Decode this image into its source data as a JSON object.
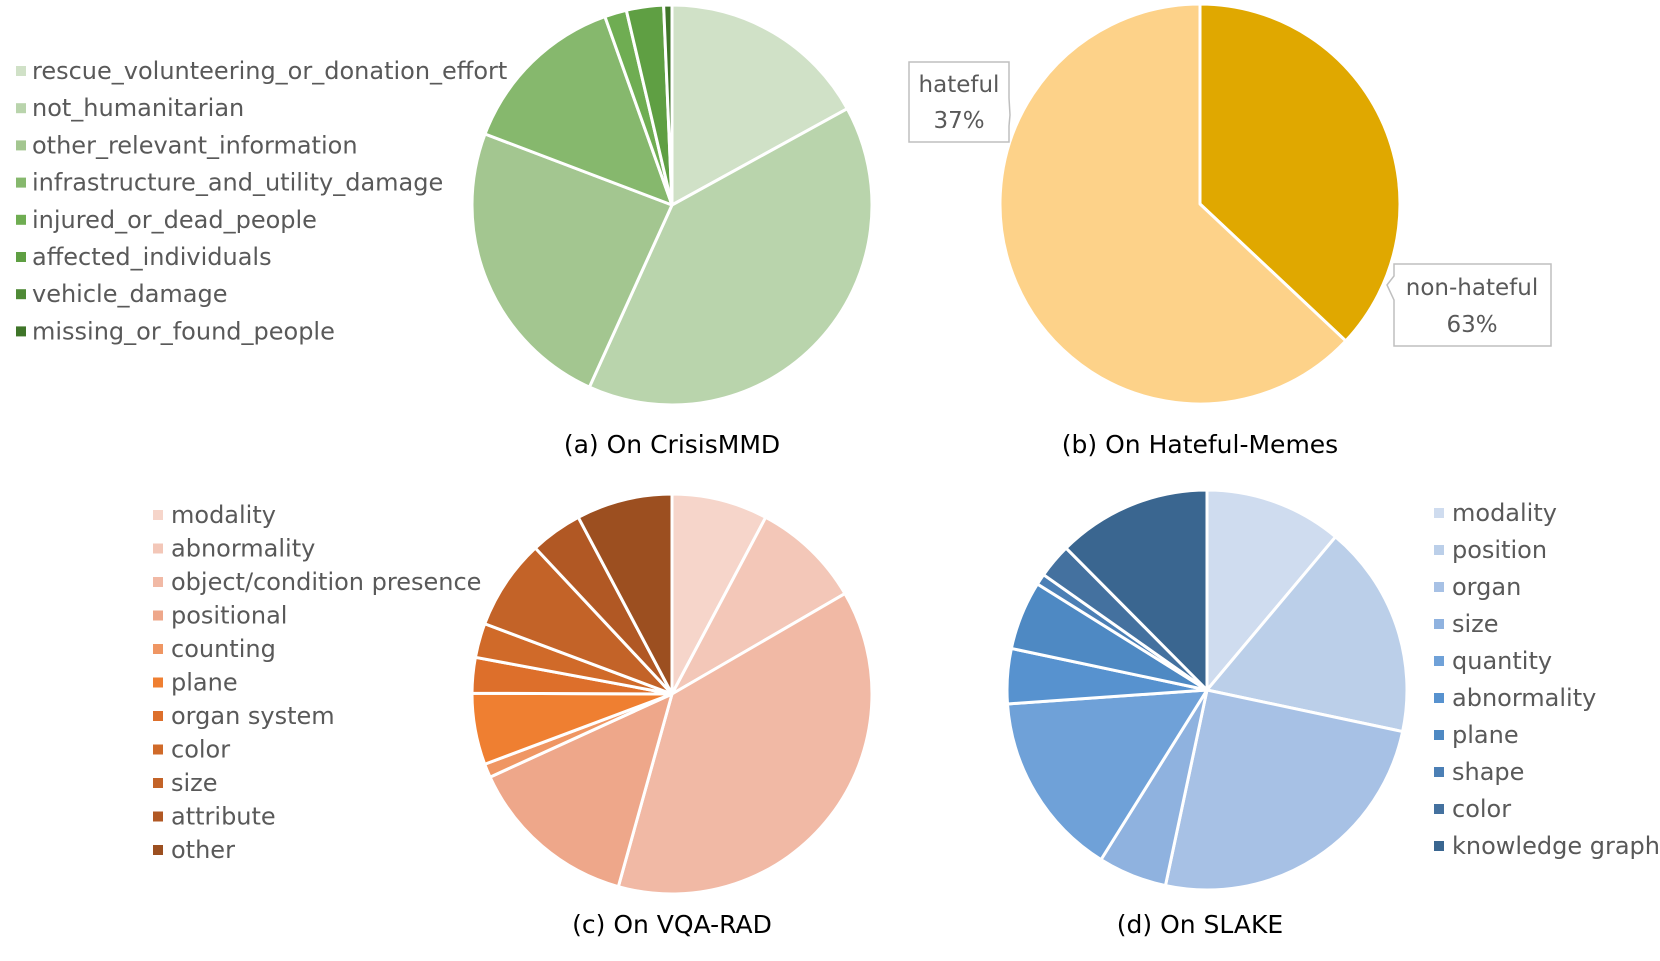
{
  "chart_data": [
    {
      "type": "pie",
      "caption": "(a) On CrisisMMD",
      "categories": [
        "rescue_volunteering_or_donation_effort",
        "not_humanitarian",
        "other_relevant_information",
        "infrastructure_and_utility_damage",
        "injured_or_dead_people",
        "affected_individuals",
        "vehicle_damage",
        "missing_or_found_people"
      ],
      "values": [
        15.3,
        35.8,
        21.6,
        12.4,
        1.6,
        2.7,
        0.0,
        0.6
      ],
      "colors": [
        "#d0e1c7",
        "#b9d4ac",
        "#a3c690",
        "#86b86d",
        "#6fad52",
        "#5f9f43",
        "#4f8a36",
        "#3f7529"
      ],
      "legend": "left"
    },
    {
      "type": "pie",
      "caption": "(b) On Hateful-Memes",
      "categories": [
        "hateful",
        "non-hateful"
      ],
      "values": [
        37,
        63
      ],
      "data_labels": [
        {
          "name": "hateful",
          "value": "37%"
        },
        {
          "name": "non-hateful",
          "value": "63%"
        }
      ],
      "colors": [
        "#e0a800",
        "#fdd289"
      ],
      "legend": "none"
    },
    {
      "type": "pie",
      "caption": "(c) On VQA-RAD",
      "categories": [
        "modality",
        "abnormality",
        "object/condition presence",
        "positional",
        "counting",
        "plane",
        "organ system",
        "color",
        "size",
        "attribute",
        "other"
      ],
      "values": [
        7.0,
        8.0,
        34.0,
        12.5,
        1.0,
        5.2,
        2.6,
        2.5,
        6.6,
        3.8,
        7.0
      ],
      "colors": [
        "#f6d5ca",
        "#f3c7b8",
        "#f1b9a5",
        "#eea78a",
        "#ef9663",
        "#ef7f31",
        "#dd6f2b",
        "#d06a29",
        "#c36328",
        "#b15824",
        "#9c4f20"
      ],
      "legend": "left"
    },
    {
      "type": "pie",
      "caption": "(d) On SLAKE",
      "categories": [
        "modality",
        "position",
        "organ",
        "size",
        "quantity",
        "abnormality",
        "plane",
        "shape",
        "color",
        "knowledge graph"
      ],
      "values": [
        10.0,
        15.5,
        22.5,
        5.0,
        13.5,
        4.0,
        5.0,
        0.8,
        2.5,
        11.2
      ],
      "colors": [
        "#cfdcef",
        "#bbcfe9",
        "#a7c1e5",
        "#8fb2df",
        "#6fa1d8",
        "#5792cf",
        "#4e89c3",
        "#4b7fb5",
        "#44719f",
        "#3a6690"
      ],
      "legend": "right"
    }
  ]
}
